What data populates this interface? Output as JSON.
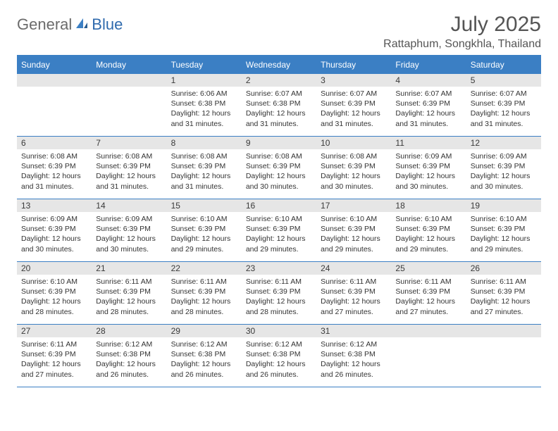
{
  "logo": {
    "text_left": "General",
    "text_right": "Blue",
    "accent_color": "#3b7fc4",
    "left_color": "#6b6b6b"
  },
  "header": {
    "month_title": "July 2025",
    "location": "Rattaphum, Songkhla, Thailand",
    "title_color": "#555555",
    "title_fontsize": 30,
    "location_fontsize": 16
  },
  "calendar": {
    "header_bg": "#3b7fc4",
    "header_text_color": "#ffffff",
    "row_border_color": "#3b7fc4",
    "daynum_bg": "#e6e6e6",
    "daynum_color": "#3a3a3a",
    "detail_color": "#333333",
    "detail_fontsize": 10.5,
    "day_names": [
      "Sunday",
      "Monday",
      "Tuesday",
      "Wednesday",
      "Thursday",
      "Friday",
      "Saturday"
    ],
    "weeks": [
      [
        {
          "day": "",
          "sunrise": "",
          "sunset": "",
          "daylight": ""
        },
        {
          "day": "",
          "sunrise": "",
          "sunset": "",
          "daylight": ""
        },
        {
          "day": "1",
          "sunrise": "Sunrise: 6:06 AM",
          "sunset": "Sunset: 6:38 PM",
          "daylight": "Daylight: 12 hours and 31 minutes."
        },
        {
          "day": "2",
          "sunrise": "Sunrise: 6:07 AM",
          "sunset": "Sunset: 6:38 PM",
          "daylight": "Daylight: 12 hours and 31 minutes."
        },
        {
          "day": "3",
          "sunrise": "Sunrise: 6:07 AM",
          "sunset": "Sunset: 6:39 PM",
          "daylight": "Daylight: 12 hours and 31 minutes."
        },
        {
          "day": "4",
          "sunrise": "Sunrise: 6:07 AM",
          "sunset": "Sunset: 6:39 PM",
          "daylight": "Daylight: 12 hours and 31 minutes."
        },
        {
          "day": "5",
          "sunrise": "Sunrise: 6:07 AM",
          "sunset": "Sunset: 6:39 PM",
          "daylight": "Daylight: 12 hours and 31 minutes."
        }
      ],
      [
        {
          "day": "6",
          "sunrise": "Sunrise: 6:08 AM",
          "sunset": "Sunset: 6:39 PM",
          "daylight": "Daylight: 12 hours and 31 minutes."
        },
        {
          "day": "7",
          "sunrise": "Sunrise: 6:08 AM",
          "sunset": "Sunset: 6:39 PM",
          "daylight": "Daylight: 12 hours and 31 minutes."
        },
        {
          "day": "8",
          "sunrise": "Sunrise: 6:08 AM",
          "sunset": "Sunset: 6:39 PM",
          "daylight": "Daylight: 12 hours and 31 minutes."
        },
        {
          "day": "9",
          "sunrise": "Sunrise: 6:08 AM",
          "sunset": "Sunset: 6:39 PM",
          "daylight": "Daylight: 12 hours and 30 minutes."
        },
        {
          "day": "10",
          "sunrise": "Sunrise: 6:08 AM",
          "sunset": "Sunset: 6:39 PM",
          "daylight": "Daylight: 12 hours and 30 minutes."
        },
        {
          "day": "11",
          "sunrise": "Sunrise: 6:09 AM",
          "sunset": "Sunset: 6:39 PM",
          "daylight": "Daylight: 12 hours and 30 minutes."
        },
        {
          "day": "12",
          "sunrise": "Sunrise: 6:09 AM",
          "sunset": "Sunset: 6:39 PM",
          "daylight": "Daylight: 12 hours and 30 minutes."
        }
      ],
      [
        {
          "day": "13",
          "sunrise": "Sunrise: 6:09 AM",
          "sunset": "Sunset: 6:39 PM",
          "daylight": "Daylight: 12 hours and 30 minutes."
        },
        {
          "day": "14",
          "sunrise": "Sunrise: 6:09 AM",
          "sunset": "Sunset: 6:39 PM",
          "daylight": "Daylight: 12 hours and 30 minutes."
        },
        {
          "day": "15",
          "sunrise": "Sunrise: 6:10 AM",
          "sunset": "Sunset: 6:39 PM",
          "daylight": "Daylight: 12 hours and 29 minutes."
        },
        {
          "day": "16",
          "sunrise": "Sunrise: 6:10 AM",
          "sunset": "Sunset: 6:39 PM",
          "daylight": "Daylight: 12 hours and 29 minutes."
        },
        {
          "day": "17",
          "sunrise": "Sunrise: 6:10 AM",
          "sunset": "Sunset: 6:39 PM",
          "daylight": "Daylight: 12 hours and 29 minutes."
        },
        {
          "day": "18",
          "sunrise": "Sunrise: 6:10 AM",
          "sunset": "Sunset: 6:39 PM",
          "daylight": "Daylight: 12 hours and 29 minutes."
        },
        {
          "day": "19",
          "sunrise": "Sunrise: 6:10 AM",
          "sunset": "Sunset: 6:39 PM",
          "daylight": "Daylight: 12 hours and 29 minutes."
        }
      ],
      [
        {
          "day": "20",
          "sunrise": "Sunrise: 6:10 AM",
          "sunset": "Sunset: 6:39 PM",
          "daylight": "Daylight: 12 hours and 28 minutes."
        },
        {
          "day": "21",
          "sunrise": "Sunrise: 6:11 AM",
          "sunset": "Sunset: 6:39 PM",
          "daylight": "Daylight: 12 hours and 28 minutes."
        },
        {
          "day": "22",
          "sunrise": "Sunrise: 6:11 AM",
          "sunset": "Sunset: 6:39 PM",
          "daylight": "Daylight: 12 hours and 28 minutes."
        },
        {
          "day": "23",
          "sunrise": "Sunrise: 6:11 AM",
          "sunset": "Sunset: 6:39 PM",
          "daylight": "Daylight: 12 hours and 28 minutes."
        },
        {
          "day": "24",
          "sunrise": "Sunrise: 6:11 AM",
          "sunset": "Sunset: 6:39 PM",
          "daylight": "Daylight: 12 hours and 27 minutes."
        },
        {
          "day": "25",
          "sunrise": "Sunrise: 6:11 AM",
          "sunset": "Sunset: 6:39 PM",
          "daylight": "Daylight: 12 hours and 27 minutes."
        },
        {
          "day": "26",
          "sunrise": "Sunrise: 6:11 AM",
          "sunset": "Sunset: 6:39 PM",
          "daylight": "Daylight: 12 hours and 27 minutes."
        }
      ],
      [
        {
          "day": "27",
          "sunrise": "Sunrise: 6:11 AM",
          "sunset": "Sunset: 6:39 PM",
          "daylight": "Daylight: 12 hours and 27 minutes."
        },
        {
          "day": "28",
          "sunrise": "Sunrise: 6:12 AM",
          "sunset": "Sunset: 6:38 PM",
          "daylight": "Daylight: 12 hours and 26 minutes."
        },
        {
          "day": "29",
          "sunrise": "Sunrise: 6:12 AM",
          "sunset": "Sunset: 6:38 PM",
          "daylight": "Daylight: 12 hours and 26 minutes."
        },
        {
          "day": "30",
          "sunrise": "Sunrise: 6:12 AM",
          "sunset": "Sunset: 6:38 PM",
          "daylight": "Daylight: 12 hours and 26 minutes."
        },
        {
          "day": "31",
          "sunrise": "Sunrise: 6:12 AM",
          "sunset": "Sunset: 6:38 PM",
          "daylight": "Daylight: 12 hours and 26 minutes."
        },
        {
          "day": "",
          "sunrise": "",
          "sunset": "",
          "daylight": ""
        },
        {
          "day": "",
          "sunrise": "",
          "sunset": "",
          "daylight": ""
        }
      ]
    ]
  }
}
